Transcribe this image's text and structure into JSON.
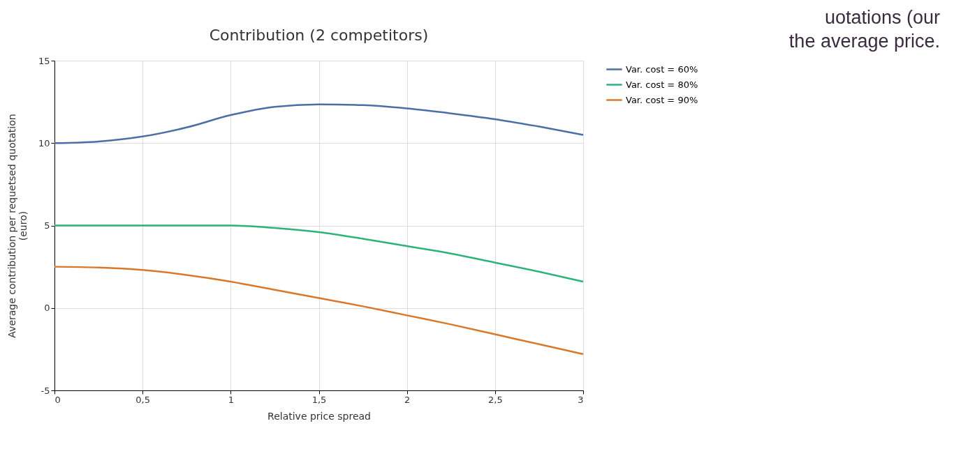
{
  "chart_data": {
    "type": "line",
    "title": "Contribution (2 competitors)",
    "xlabel": "Relative price spread",
    "ylabel": "Average contribution per requetsed quotation\n(euro)",
    "x": [
      0,
      0.25,
      0.5,
      0.75,
      1,
      1.25,
      1.5,
      1.75,
      2,
      2.25,
      2.5,
      2.75,
      3
    ],
    "series": [
      {
        "name": "Var. cost = 60%",
        "color": "#4a6fa5",
        "values": [
          10,
          10.1,
          10.4,
          10.95,
          11.7,
          12.2,
          12.35,
          12.3,
          12.1,
          11.8,
          11.45,
          11.0,
          10.5
        ]
      },
      {
        "name": "Var. cost = 80%",
        "color": "#2db37a",
        "values": [
          5,
          5,
          5,
          5,
          5,
          4.85,
          4.6,
          4.2,
          3.75,
          3.3,
          2.75,
          2.2,
          1.6
        ]
      },
      {
        "name": "Var. cost = 90%",
        "color": "#d9782b",
        "values": [
          2.5,
          2.45,
          2.3,
          2.0,
          1.6,
          1.1,
          0.6,
          0.1,
          -0.45,
          -1.0,
          -1.6,
          -2.2,
          -2.8
        ]
      }
    ],
    "xlim": [
      0,
      3
    ],
    "xticks": [
      0,
      {
        "value": 0.5,
        "label": "0,5"
      },
      1,
      {
        "value": 1.5,
        "label": "1,5"
      },
      2,
      {
        "value": 2.5,
        "label": "2,5"
      },
      3
    ],
    "ylim": [
      -5,
      15
    ],
    "yticks": [
      -5,
      0,
      5,
      10,
      15
    ],
    "grid": true,
    "legend": "right",
    "marker": "none",
    "line_style": "solid",
    "annotations": [
      "uotations (our",
      "the average price."
    ]
  }
}
